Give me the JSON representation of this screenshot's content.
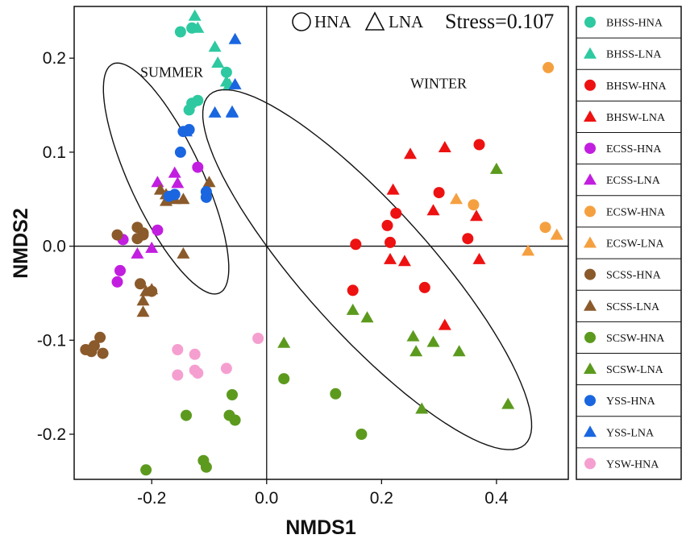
{
  "chart_data": {
    "type": "scatter",
    "title": "",
    "xlabel": "NMDS1",
    "ylabel": "NMDS2",
    "xlim": [
      -0.335,
      0.525
    ],
    "ylim": [
      -0.248,
      0.255
    ],
    "xticks": [
      -0.2,
      0.0,
      0.2,
      0.4
    ],
    "xtick_labels": [
      "-0.2",
      "0.0",
      "0.2",
      "0.4"
    ],
    "yticks": [
      -0.2,
      -0.1,
      0.0,
      0.1,
      0.2
    ],
    "ytick_labels": [
      "-0.2",
      "-0.1",
      "0.0",
      "0.1",
      "0.2"
    ],
    "grid": false,
    "reference_lines": {
      "x": 0.0,
      "y": 0.0
    },
    "shape_key": [
      {
        "label": "HNA",
        "marker": "circle"
      },
      {
        "label": "LNA",
        "marker": "triangle"
      }
    ],
    "stress_label": "Stress=0.107",
    "legend_position": "right",
    "group_labels": [
      {
        "text": "SUMMER",
        "x": -0.22,
        "y": 0.18
      },
      {
        "text": "WINTER",
        "x": 0.25,
        "y": 0.168
      }
    ],
    "ellipses": [
      {
        "name": "SUMMER",
        "cx": -0.175,
        "cy": 0.072,
        "rx": 0.22,
        "ry": 0.063,
        "angle_deg": -65
      },
      {
        "name": "WINTER",
        "cx": 0.175,
        "cy": -0.025,
        "rx": 0.41,
        "ry": 0.11,
        "angle_deg": -48
      }
    ],
    "series": [
      {
        "name": "BHSS-HNA",
        "color": "#2ec9a0",
        "marker": "circle",
        "x": [
          -0.15,
          -0.13,
          -0.07,
          -0.13,
          -0.12,
          -0.135
        ],
        "y": [
          0.228,
          0.232,
          0.185,
          0.152,
          0.155,
          0.145
        ]
      },
      {
        "name": "BHSS-LNA",
        "color": "#2ec9a0",
        "marker": "triangle",
        "x": [
          -0.125,
          -0.12,
          -0.09,
          -0.085,
          -0.07,
          -0.065
        ],
        "y": [
          0.245,
          0.232,
          0.212,
          0.195,
          0.175,
          0.172
        ]
      },
      {
        "name": "BHSW-HNA",
        "color": "#ee1111",
        "marker": "circle",
        "x": [
          0.37,
          0.3,
          0.225,
          0.21,
          0.155,
          0.215,
          0.35,
          0.275,
          0.15
        ],
        "y": [
          0.108,
          0.057,
          0.035,
          0.022,
          0.002,
          0.004,
          0.008,
          -0.044,
          -0.047
        ]
      },
      {
        "name": "BHSW-LNA",
        "color": "#ee1111",
        "marker": "triangle",
        "x": [
          0.25,
          0.31,
          0.22,
          0.29,
          0.365,
          0.215,
          0.24,
          0.37,
          0.31
        ],
        "y": [
          0.098,
          0.105,
          0.06,
          0.038,
          0.032,
          -0.014,
          -0.016,
          -0.014,
          -0.084
        ]
      },
      {
        "name": "ECSS-HNA",
        "color": "#c21ee0",
        "marker": "circle",
        "x": [
          -0.12,
          -0.19,
          -0.25,
          -0.255,
          -0.26
        ],
        "y": [
          0.084,
          0.017,
          0.007,
          -0.026,
          -0.038
        ]
      },
      {
        "name": "ECSS-LNA",
        "color": "#c21ee0",
        "marker": "triangle",
        "x": [
          -0.16,
          -0.19,
          -0.155,
          -0.2,
          -0.225
        ],
        "y": [
          0.078,
          0.068,
          0.067,
          -0.002,
          -0.008
        ]
      },
      {
        "name": "ECSW-HNA",
        "color": "#f5a040",
        "marker": "circle",
        "x": [
          0.49,
          0.36,
          0.485
        ],
        "y": [
          0.19,
          0.044,
          0.02
        ]
      },
      {
        "name": "ECSW-LNA",
        "color": "#f5a040",
        "marker": "triangle",
        "x": [
          0.33,
          0.505,
          0.455
        ],
        "y": [
          0.05,
          0.012,
          -0.005
        ]
      },
      {
        "name": "SCSS-HNA",
        "color": "#8b5a2b",
        "marker": "circle",
        "x": [
          -0.225,
          -0.215,
          -0.26,
          -0.225,
          -0.215,
          -0.22,
          -0.2,
          -0.29,
          -0.3,
          -0.315,
          -0.305,
          -0.285
        ],
        "y": [
          0.02,
          0.014,
          0.012,
          0.008,
          0.012,
          -0.04,
          -0.048,
          -0.097,
          -0.106,
          -0.11,
          -0.112,
          -0.114
        ]
      },
      {
        "name": "SCSS-LNA",
        "color": "#8b5a2b",
        "marker": "triangle",
        "x": [
          -0.185,
          -0.175,
          -0.175,
          -0.1,
          -0.145,
          -0.16,
          -0.145,
          -0.2,
          -0.21,
          -0.215,
          -0.215
        ],
        "y": [
          0.06,
          0.055,
          0.048,
          0.068,
          0.05,
          0.05,
          -0.008,
          -0.046,
          -0.048,
          -0.058,
          -0.07
        ]
      },
      {
        "name": "SCSW-HNA",
        "color": "#5c9a1e",
        "marker": "circle",
        "x": [
          0.03,
          0.12,
          -0.06,
          -0.14,
          -0.065,
          -0.055,
          0.165,
          -0.11,
          -0.105,
          -0.21
        ],
        "y": [
          -0.141,
          -0.157,
          -0.158,
          -0.18,
          -0.18,
          -0.185,
          -0.2,
          -0.228,
          -0.235,
          -0.238
        ]
      },
      {
        "name": "SCSW-LNA",
        "color": "#5c9a1e",
        "marker": "triangle",
        "x": [
          0.4,
          0.15,
          0.175,
          0.03,
          0.255,
          0.26,
          0.29,
          0.335,
          0.27,
          0.42
        ],
        "y": [
          0.082,
          -0.068,
          -0.076,
          -0.103,
          -0.096,
          -0.112,
          -0.102,
          -0.112,
          -0.173,
          -0.168
        ]
      },
      {
        "name": "YSS-HNA",
        "color": "#1a66e0",
        "marker": "circle",
        "x": [
          -0.145,
          -0.135,
          -0.15,
          -0.105,
          -0.105,
          -0.17,
          -0.16
        ],
        "y": [
          0.122,
          0.124,
          0.1,
          0.058,
          0.052,
          0.053,
          0.055
        ]
      },
      {
        "name": "YSS-LNA",
        "color": "#1a66e0",
        "marker": "triangle",
        "x": [
          -0.055,
          -0.055,
          -0.06,
          -0.09,
          -0.06,
          -0.14
        ],
        "y": [
          0.22,
          0.172,
          0.142,
          0.142,
          0.143,
          0.122
        ]
      },
      {
        "name": "YSW-HNA",
        "color": "#f59fd0",
        "marker": "circle",
        "x": [
          -0.015,
          -0.155,
          -0.125,
          -0.07,
          -0.125,
          -0.12,
          -0.155
        ],
        "y": [
          -0.098,
          -0.11,
          -0.115,
          -0.13,
          -0.132,
          -0.135,
          -0.137
        ]
      }
    ]
  }
}
